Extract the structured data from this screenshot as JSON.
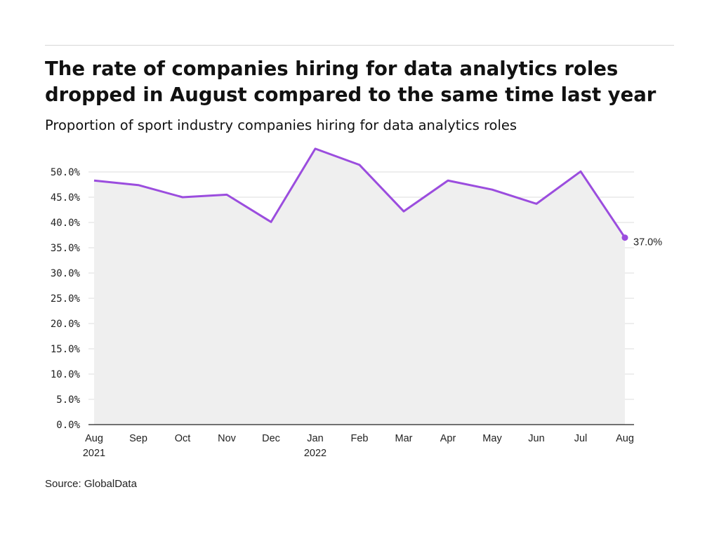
{
  "header": {
    "title": "The rate of companies hiring for data analytics roles dropped in August compared to the same time last year",
    "subtitle": "Proportion of sport industry companies hiring for data analytics roles"
  },
  "footer": {
    "source": "Source: GlobalData"
  },
  "chart_data": {
    "type": "area",
    "title": "The rate of companies hiring for data analytics roles dropped in August compared to the same time last year",
    "subtitle": "Proportion of sport industry companies hiring for data analytics roles",
    "xlabel": "",
    "ylabel": "",
    "categories": [
      "Aug\n2021",
      "Sep",
      "Oct",
      "Nov",
      "Dec",
      "Jan\n2022",
      "Feb",
      "Mar",
      "Apr",
      "May",
      "Jun",
      "Jul",
      "Aug"
    ],
    "series": [
      {
        "values": [
          48.3,
          47.4,
          45.0,
          45.5,
          40.1,
          54.6,
          51.4,
          42.2,
          48.3,
          46.5,
          43.7,
          50.1,
          37.0
        ]
      }
    ],
    "end_label": "37.0%",
    "ylim": [
      0,
      50
    ],
    "yticks": [
      "0.0%",
      "5.0%",
      "10.0%",
      "15.0%",
      "20.0%",
      "25.0%",
      "30.0%",
      "35.0%",
      "40.0%",
      "45.0%",
      "50.0%"
    ],
    "grid": true,
    "legend": "none",
    "colors": {
      "line": "#9b4dde",
      "area": "#efefef",
      "grid": "#dddddd",
      "axis": "#222222"
    }
  }
}
